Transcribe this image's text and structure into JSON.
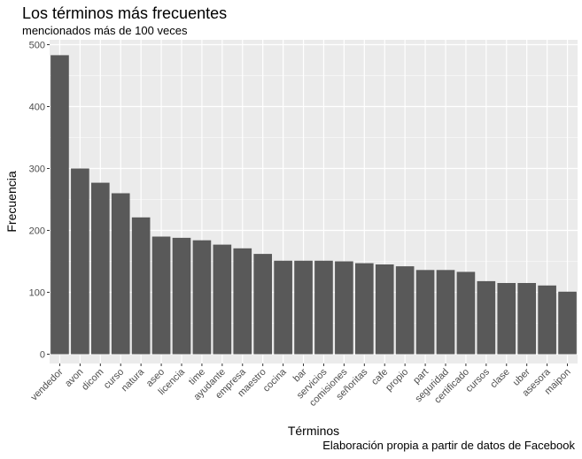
{
  "chart_data": {
    "type": "bar",
    "title": "Los términos más frecuentes",
    "subtitle": "mencionados más de 100 veces",
    "caption": "Elaboración propia a partir de datos de Facebook",
    "xlabel": "Términos",
    "ylabel": "Frecuencia",
    "ylim": [
      0,
      500
    ],
    "yticks": [
      0,
      100,
      200,
      300,
      400,
      500
    ],
    "grid": true,
    "categories": [
      "vendedor",
      "avon",
      "dicom",
      "curso",
      "natura",
      "aseo",
      "licencia",
      "time",
      "ayudante",
      "empresa",
      "maestro",
      "cocina",
      "bar",
      "servicios",
      "comisiones",
      "señoritas",
      "cafe",
      "propio",
      "part",
      "seguridad",
      "certificado",
      "cursos",
      "clase",
      "uber",
      "asesora",
      "maipon"
    ],
    "values": [
      483,
      300,
      277,
      260,
      221,
      190,
      188,
      184,
      177,
      171,
      162,
      151,
      151,
      151,
      150,
      147,
      145,
      142,
      136,
      136,
      133,
      118,
      115,
      115,
      111,
      101
    ],
    "colors": {
      "panel": "#ebebeb",
      "bar": "#595959",
      "grid": "#ffffff"
    }
  }
}
